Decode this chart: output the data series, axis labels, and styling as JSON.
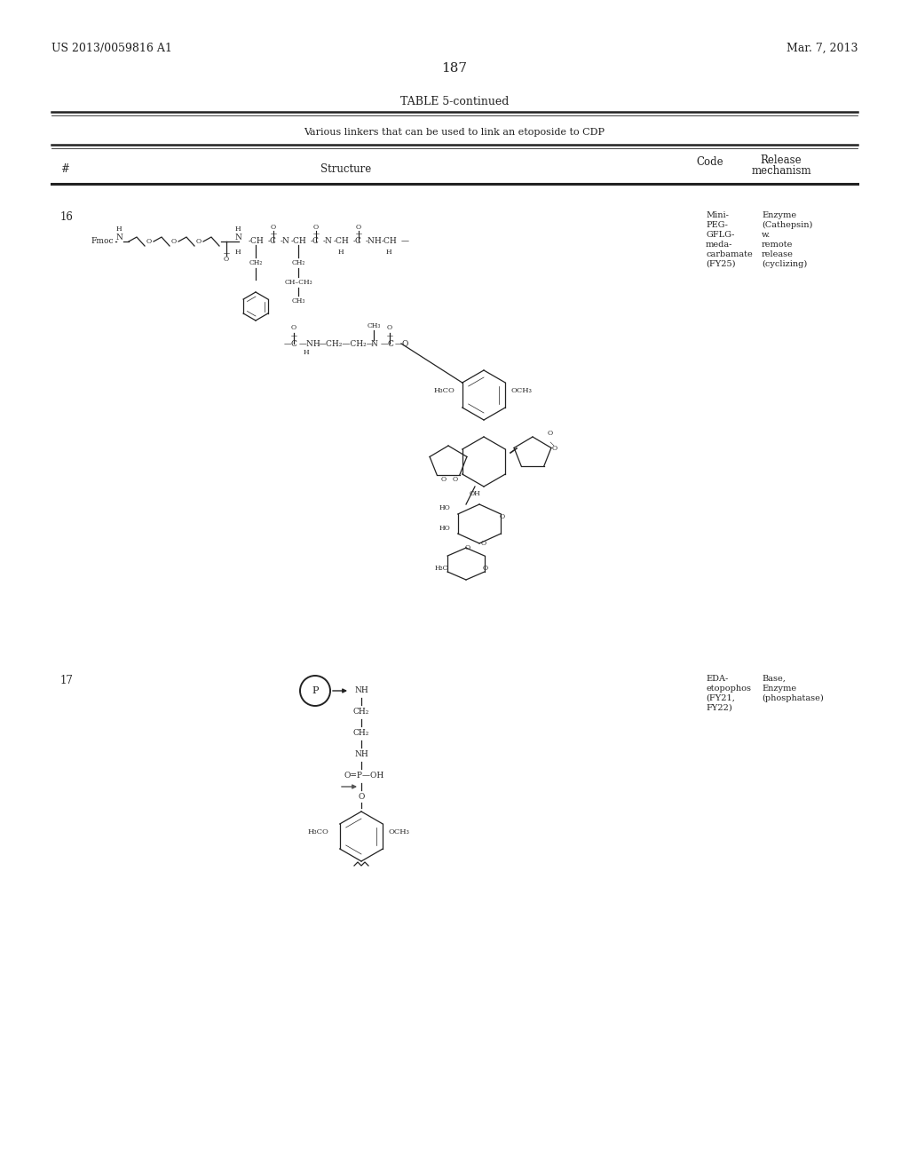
{
  "background_color": "#ffffff",
  "page_number": "187",
  "patent_number": "US 2013/0059816 A1",
  "patent_date": "Mar. 7, 2013",
  "table_title": "TABLE 5-continued",
  "table_subtitle": "Various linkers that can be used to link an etoposide to CDP",
  "col_hash": "#",
  "col_structure": "Structure",
  "col_code": "Code",
  "col_release": "Release",
  "col_mechanism": "mechanism",
  "row16_number": "16",
  "row16_code_lines": [
    "Mini-",
    "PEG-",
    "GFLG-",
    "meda-",
    "carbamate",
    "(FY25)"
  ],
  "row16_mech_lines": [
    "Enzyme",
    "(Cathepsin)",
    "w.",
    "remote",
    "release",
    "(cyclizing)"
  ],
  "row17_number": "17",
  "row17_code_lines": [
    "EDA-",
    "etopophos",
    "(FY21,",
    "FY22)"
  ],
  "row17_mech_lines": [
    "Base,",
    "Enzyme",
    "(phosphatase)"
  ]
}
